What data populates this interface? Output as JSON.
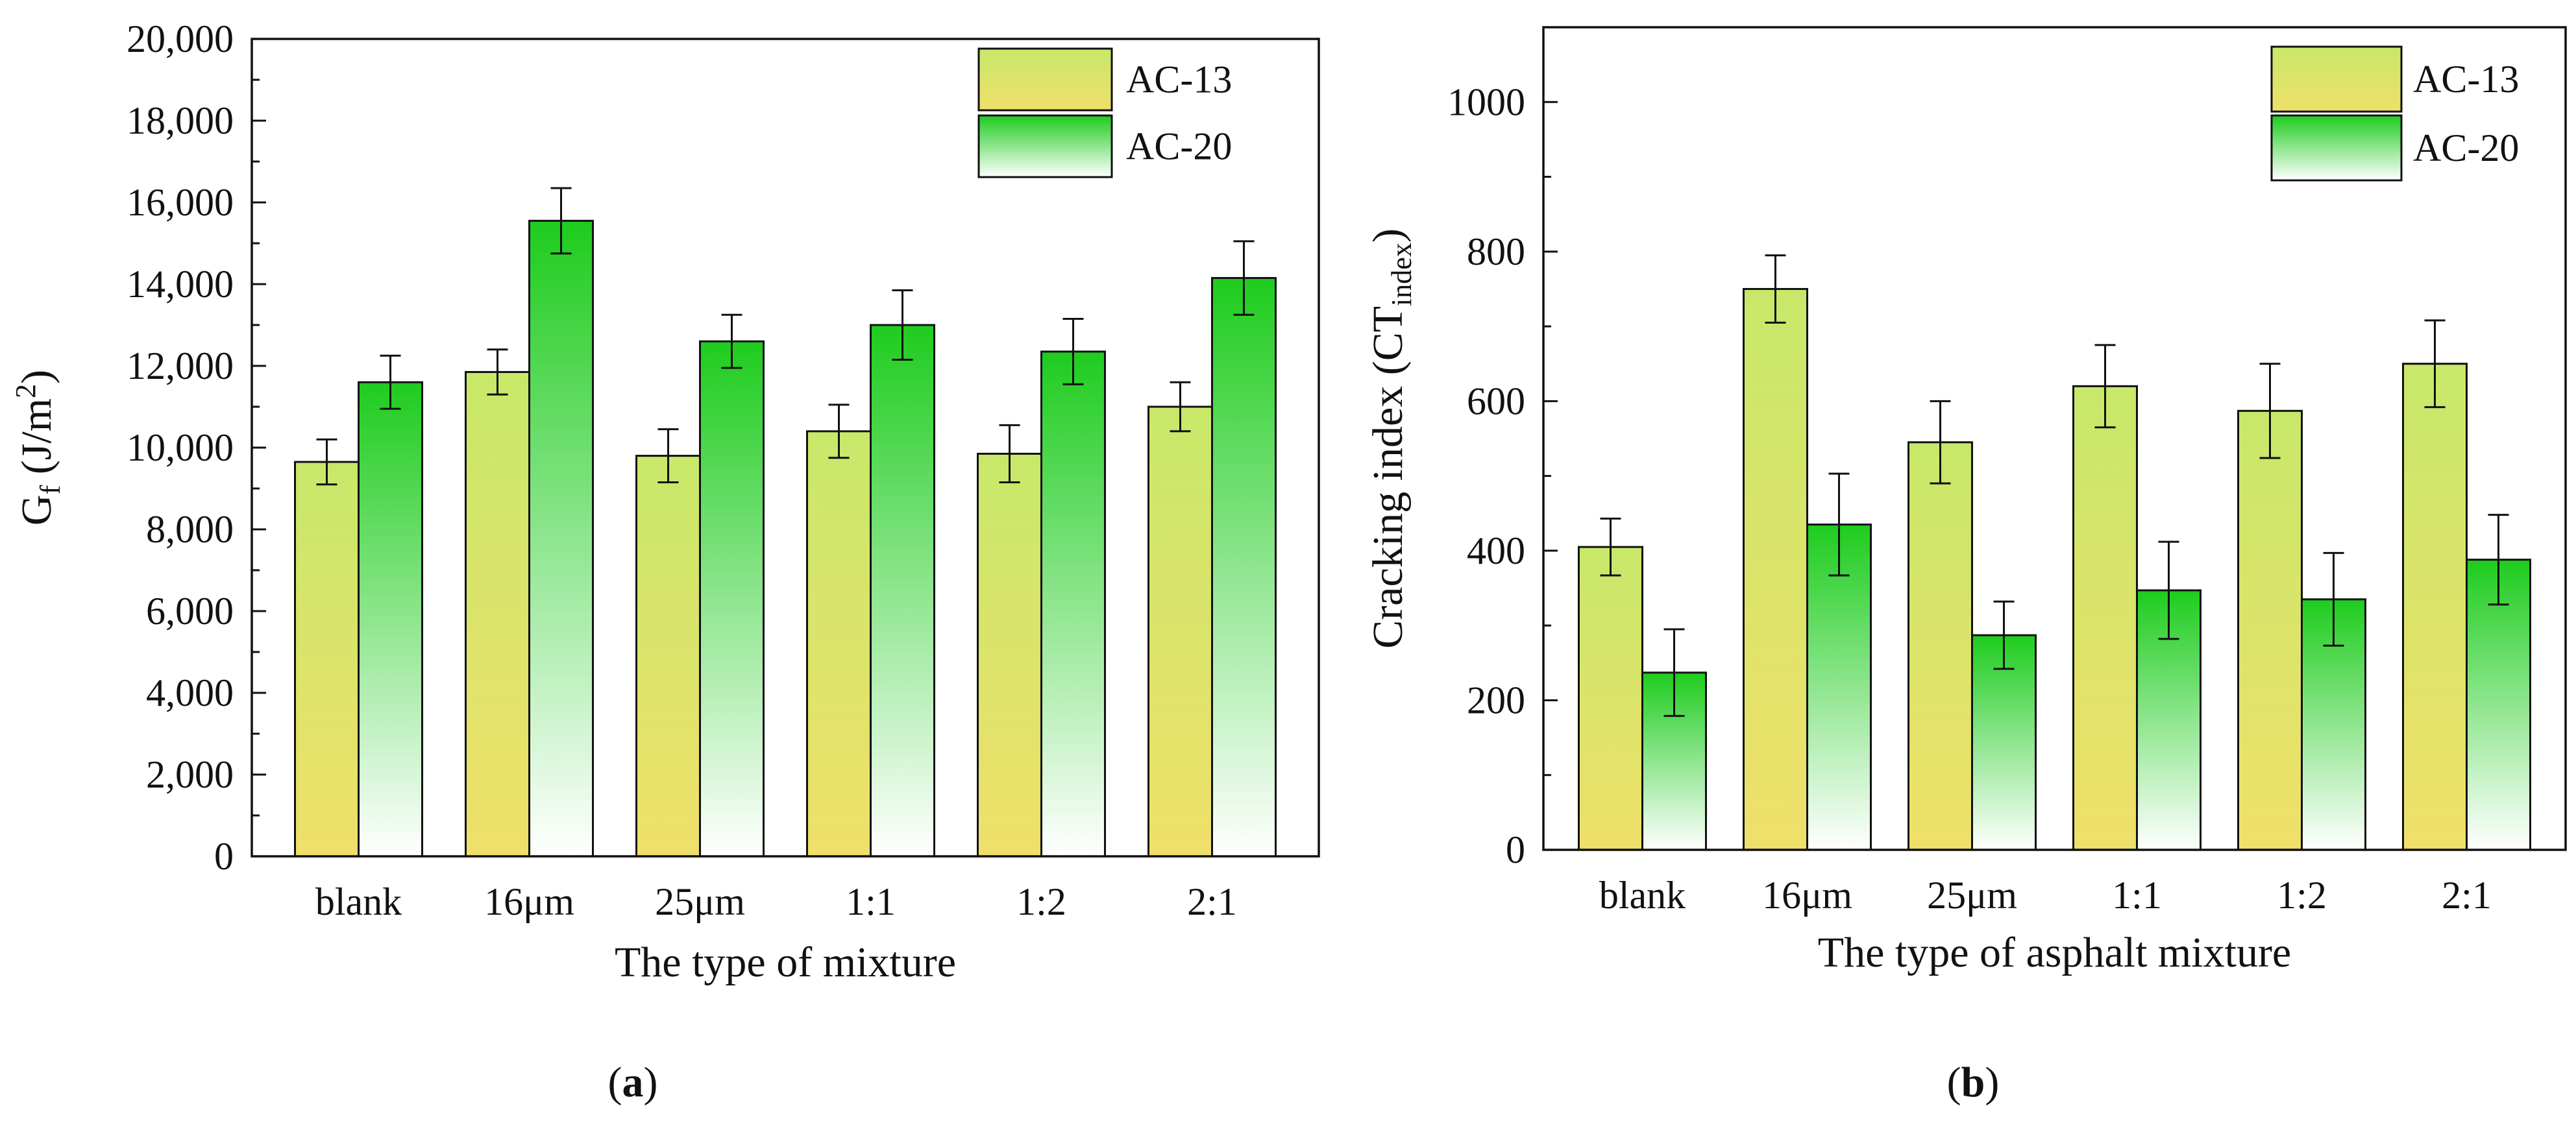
{
  "chart_data": [
    {
      "type": "bar",
      "panel": "(a)",
      "panel_open": "(",
      "panel_letter": "a",
      "panel_close": ")",
      "categories": [
        "blank",
        "16μm",
        "25μm",
        "1:1",
        "1:2",
        "2:1"
      ],
      "series": [
        {
          "name": "AC-13",
          "values": [
            9650,
            11850,
            9800,
            10400,
            9850,
            11000
          ],
          "errors": [
            550,
            550,
            650,
            650,
            700,
            600
          ],
          "color_top": "#c8e86a",
          "color_bottom": "#efe06a"
        },
        {
          "name": "AC-20",
          "values": [
            11600,
            15550,
            12600,
            13000,
            12350,
            14150
          ],
          "errors": [
            650,
            800,
            650,
            850,
            800,
            900
          ],
          "color_top": "#1ecc1e",
          "color_bottom": "#ffffff"
        }
      ],
      "ylim": [
        0,
        20000
      ],
      "yticks": [
        0,
        2000,
        4000,
        6000,
        8000,
        10000,
        12000,
        14000,
        16000,
        18000,
        20000
      ],
      "ytick_labels": [
        "0",
        "2,000",
        "4,000",
        "6,000",
        "8,000",
        "10,000",
        "12,000",
        "14,000",
        "16,000",
        "18,000",
        "20,000"
      ],
      "xlabel": "The type of mixture",
      "ylabel_main": "G",
      "ylabel_sub": "f",
      "ylabel_rest": " (J/m",
      "ylabel_sup": "2",
      "ylabel_end": ")",
      "legend_position": "top-right"
    },
    {
      "type": "bar",
      "panel": "(b)",
      "panel_open": "(",
      "panel_letter": "b",
      "panel_close": ")",
      "categories": [
        "blank",
        "16μm",
        "25μm",
        "1:1",
        "1:2",
        "2:1"
      ],
      "series": [
        {
          "name": "AC-13",
          "values": [
            405,
            750,
            545,
            620,
            587,
            650
          ],
          "errors": [
            38,
            45,
            55,
            55,
            63,
            58
          ],
          "color_top": "#c8e86a",
          "color_bottom": "#efe06a"
        },
        {
          "name": "AC-20",
          "values": [
            237,
            435,
            287,
            347,
            335,
            388
          ],
          "errors": [
            58,
            68,
            45,
            65,
            62,
            60
          ],
          "color_top": "#1ecc1e",
          "color_bottom": "#ffffff"
        }
      ],
      "ylim": [
        0,
        1100
      ],
      "yticks": [
        0,
        200,
        400,
        600,
        800,
        1000
      ],
      "ytick_labels": [
        "0",
        "200",
        "400",
        "600",
        "800",
        "1000"
      ],
      "xlabel": "The type of asphalt mixture",
      "ylabel_main": "Cracking index (CT",
      "ylabel_sub": "index",
      "ylabel_rest": ")",
      "ylabel_sup": "",
      "ylabel_end": "",
      "legend_position": "top-right"
    }
  ]
}
